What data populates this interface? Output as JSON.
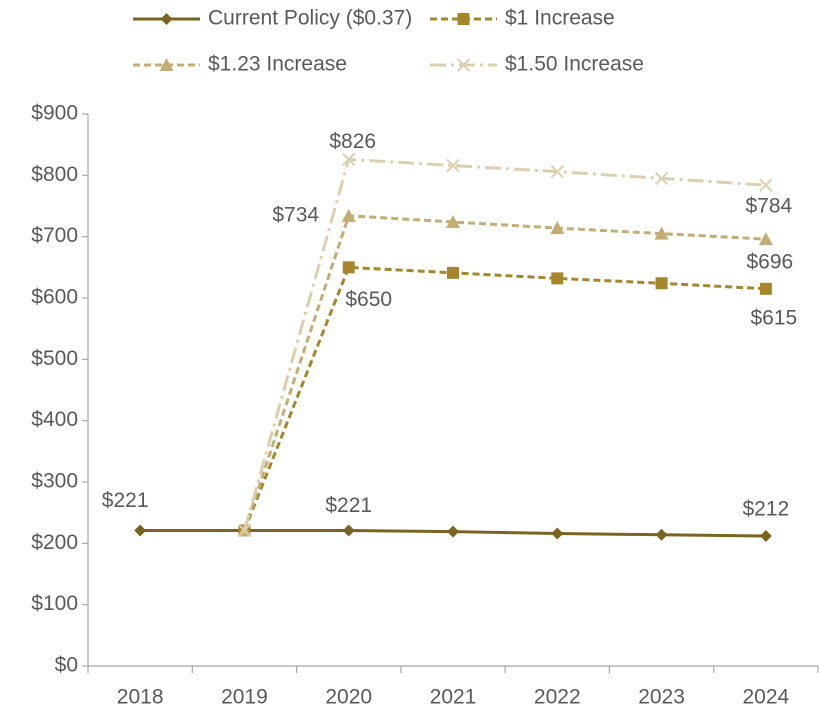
{
  "chart_data": {
    "type": "line",
    "categories": [
      "2018",
      "2019",
      "2020",
      "2021",
      "2022",
      "2023",
      "2024"
    ],
    "series": [
      {
        "name": "Current Policy ($0.37)",
        "color": "#7a6420",
        "marker": "diamond",
        "dash": "solid",
        "values": [
          221,
          221,
          221,
          219,
          216,
          214,
          212
        ],
        "value_labels": [
          "$221",
          null,
          "$221",
          null,
          null,
          null,
          "$212"
        ]
      },
      {
        "name": "$1 Increase",
        "color": "#a5862a",
        "marker": "square",
        "dash": "dashed",
        "values": [
          null,
          221,
          650,
          641,
          632,
          624,
          615
        ],
        "value_labels": [
          null,
          null,
          "$650",
          null,
          null,
          null,
          "$615"
        ]
      },
      {
        "name": "$1.23 Increase",
        "color": "#c4ac72",
        "marker": "triangle",
        "dash": "dashed",
        "values": [
          null,
          221,
          734,
          724,
          714,
          705,
          696
        ],
        "value_labels": [
          null,
          null,
          "$734",
          null,
          null,
          null,
          "$696"
        ]
      },
      {
        "name": "$1.50 Increase",
        "color": "#dccfb0",
        "marker": "x",
        "dash": "dashdot",
        "values": [
          null,
          221,
          826,
          816,
          806,
          795,
          784
        ],
        "value_labels": [
          null,
          null,
          "$826",
          null,
          null,
          null,
          "$784"
        ]
      }
    ],
    "ylim": [
      0,
      900
    ],
    "yticks": [
      {
        "value": 0,
        "label": "$0"
      },
      {
        "value": 100,
        "label": "$100"
      },
      {
        "value": 200,
        "label": "$200"
      },
      {
        "value": 300,
        "label": "$300"
      },
      {
        "value": 400,
        "label": "$400"
      },
      {
        "value": 500,
        "label": "$500"
      },
      {
        "value": 600,
        "label": "$600"
      },
      {
        "value": 700,
        "label": "$700"
      },
      {
        "value": 800,
        "label": "$800"
      },
      {
        "value": 900,
        "label": "$900"
      }
    ],
    "grid": false
  }
}
